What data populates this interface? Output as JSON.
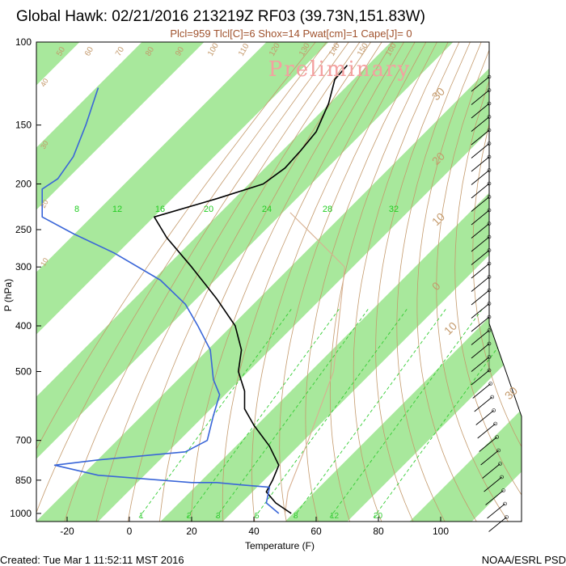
{
  "header": {
    "title": "Global Hawk: 02/21/2016 213219Z RF03 (39.73N,151.83W)",
    "subtitle": "Plcl=959 Tlcl[C]=6 Shox=14 Pwat[cm]=1 Cape[J]= 0"
  },
  "watermark": "Preliminary",
  "footer": {
    "created": "Created: Tue Mar  1 11:52:11 MST 2016",
    "credit": "NOAA/ESRL PSD"
  },
  "colors": {
    "band": "#a8e89c",
    "temperature": "#000000",
    "dewpoint": "#3a66d8",
    "dry_adiabat": "#c49a6c",
    "mixing_ratio": "#33cc33",
    "parcel": "#d8b090"
  },
  "chart_data": {
    "type": "line",
    "title": "Global Hawk: 02/21/2016 213219Z RF03 (39.73N,151.83W)",
    "xlabel": "Temperature (F)",
    "ylabel": "P (hPa)",
    "y_scale": "log",
    "y_reversed": true,
    "xlim": [
      -28,
      115
    ],
    "ylim": [
      1050,
      100
    ],
    "x_ticks": [
      -20,
      0,
      20,
      40,
      60,
      80,
      100
    ],
    "y_ticks": [
      100,
      150,
      200,
      250,
      300,
      400,
      500,
      700,
      850,
      1000
    ],
    "mixing_ratio_labels": [
      "1",
      "2",
      "3",
      "5",
      "8",
      "12",
      "20"
    ],
    "mixing_ratio_upper_labels": [
      "8",
      "12",
      "16",
      "20",
      "24",
      "28",
      "32"
    ],
    "dry_adiabat_labels": [
      "50",
      "60",
      "70",
      "80",
      "90",
      "100",
      "110",
      "120",
      "130",
      "140",
      "150",
      "160",
      "40",
      "30",
      "20",
      "10"
    ],
    "skew_labels": [
      "-30",
      "-20",
      "-10",
      "0",
      "10",
      "20",
      "30",
      "40",
      "50",
      "60"
    ],
    "series": [
      {
        "name": "Temperature",
        "points": [
          [
            70,
            112
          ],
          [
            66,
            120
          ],
          [
            64,
            135
          ],
          [
            60,
            155
          ],
          [
            55,
            170
          ],
          [
            50,
            185
          ],
          [
            43,
            200
          ],
          [
            28,
            215
          ],
          [
            8,
            235
          ],
          [
            12,
            260
          ],
          [
            20,
            300
          ],
          [
            28,
            350
          ],
          [
            34,
            400
          ],
          [
            36,
            450
          ],
          [
            35,
            500
          ],
          [
            37,
            550
          ],
          [
            37,
            600
          ],
          [
            40,
            650
          ],
          [
            45,
            720
          ],
          [
            48,
            790
          ],
          [
            46,
            850
          ],
          [
            44,
            900
          ],
          [
            47,
            950
          ],
          [
            52,
            1000
          ]
        ]
      },
      {
        "name": "Dewpoint",
        "points": [
          [
            -10,
            125
          ],
          [
            -14,
            150
          ],
          [
            -18,
            175
          ],
          [
            -23,
            195
          ],
          [
            -28,
            205
          ],
          [
            -28,
            235
          ],
          [
            -18,
            255
          ],
          [
            -5,
            280
          ],
          [
            10,
            320
          ],
          [
            18,
            360
          ],
          [
            22,
            400
          ],
          [
            26,
            450
          ],
          [
            27,
            520
          ],
          [
            29,
            560
          ],
          [
            27,
            620
          ],
          [
            25,
            700
          ],
          [
            18,
            740
          ],
          [
            -10,
            770
          ],
          [
            -24,
            790
          ],
          [
            -10,
            830
          ],
          [
            20,
            860
          ],
          [
            28,
            860
          ],
          [
            36,
            870
          ],
          [
            45,
            880
          ],
          [
            44,
            950
          ],
          [
            48,
            1000
          ]
        ]
      }
    ]
  }
}
